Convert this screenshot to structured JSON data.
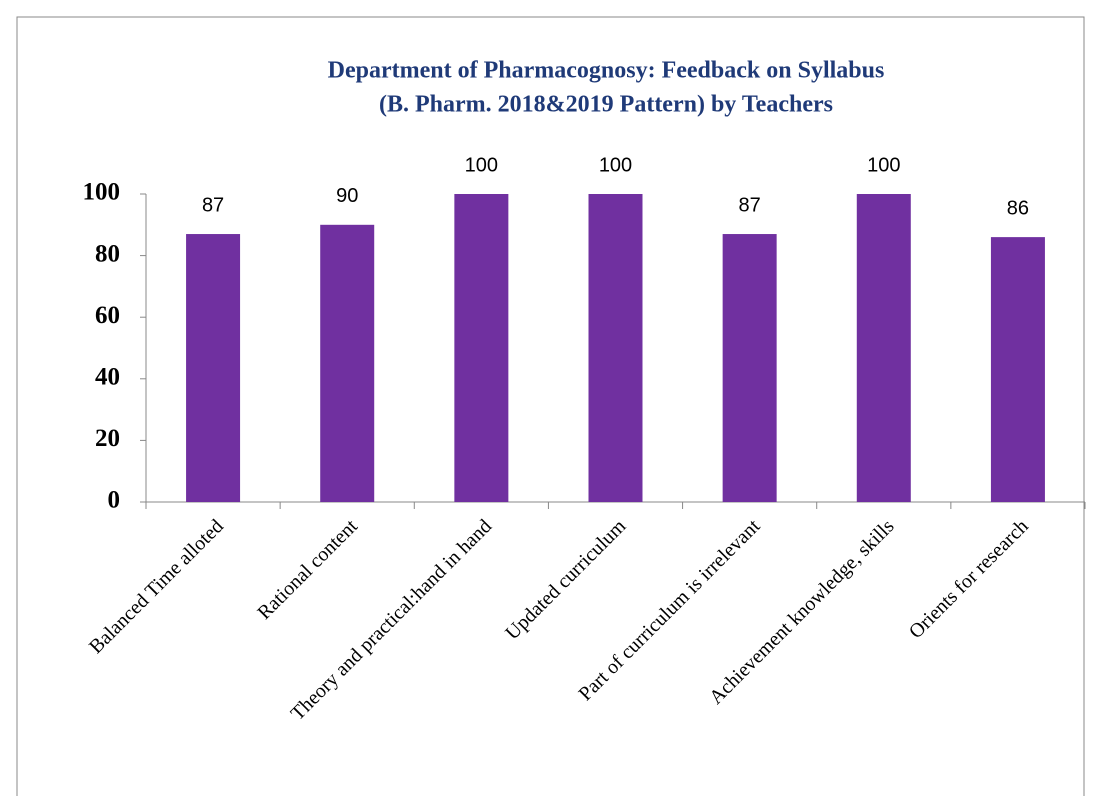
{
  "chart_data": {
    "type": "bar",
    "title": [
      "Department of Pharmacognosy: Feedback on Syllabus",
      "(B. Pharm. 2018&2019 Pattern) by Teachers"
    ],
    "categories": [
      "Balanced Time alloted",
      "Rational content",
      "Theory and practical:hand in hand",
      "Updated curriculum",
      "Part of curriculum is irrelevant",
      "Achievement knowledge, skills",
      "Orients for research"
    ],
    "values": [
      87,
      90,
      100,
      100,
      87,
      100,
      86
    ],
    "color": "#7030a0",
    "ylim": [
      0,
      100
    ],
    "yticks": [
      0,
      20,
      40,
      60,
      80,
      100
    ],
    "grid": false
  }
}
